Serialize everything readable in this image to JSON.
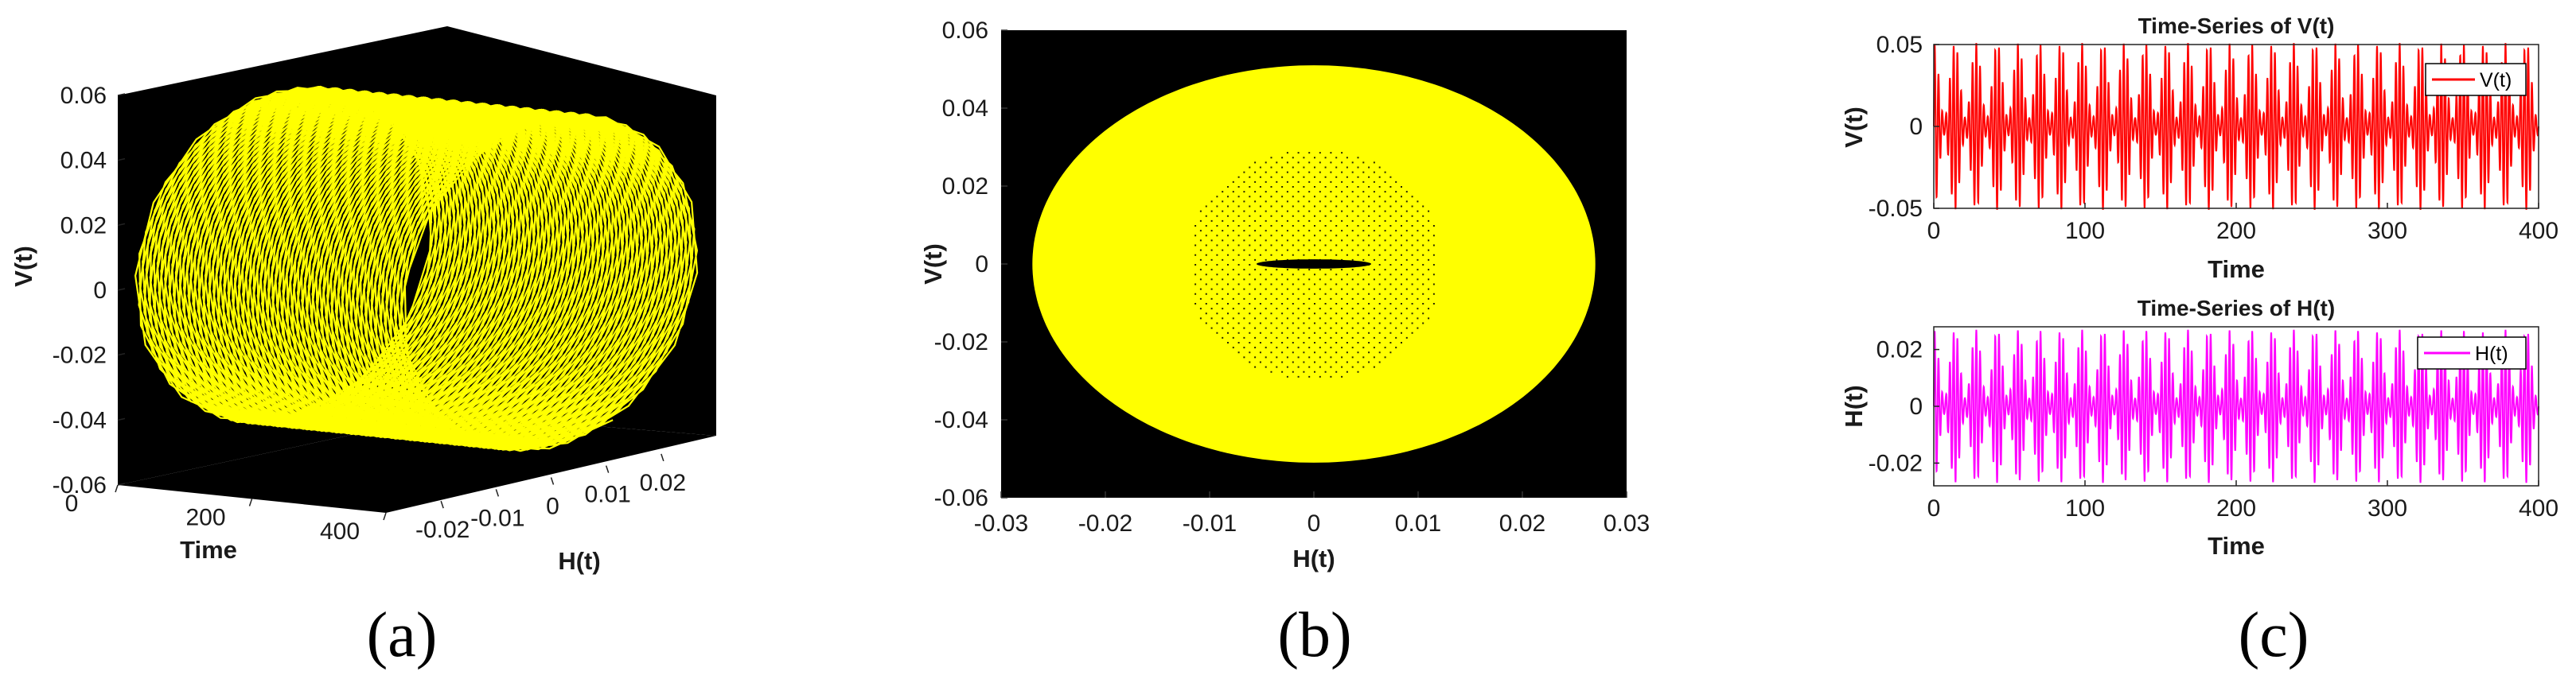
{
  "figure": {
    "caption_a": "(a)",
    "caption_b": "(b)",
    "caption_c": "(c)"
  },
  "colors": {
    "plot_background": "#000000",
    "yellow_trajectory": "#ffff00",
    "v_series": "#ff0000",
    "h_series": "#ff00ff"
  },
  "chart_data": [
    {
      "panel": "(a)",
      "type": "line",
      "projection": "3d",
      "title": "",
      "xlabel": "H(t)",
      "ylabel": "Time",
      "zlabel": "V(t)",
      "xlim": [
        -0.03,
        0.03
      ],
      "ylim": [
        0,
        400
      ],
      "zlim": [
        -0.06,
        0.06
      ],
      "xticks": [
        "-0.02",
        "-0.01",
        "0",
        "0.01",
        "0.02"
      ],
      "yticks": [
        "0",
        "200",
        "400"
      ],
      "zticks": [
        "0.06",
        "0.04",
        "0.02",
        "0",
        "-0.02",
        "-0.04",
        "-0.06"
      ],
      "series": [
        {
          "color": "#ffff00",
          "h_amplitude": 0.027,
          "v_amplitude": 0.051
        }
      ],
      "background": "#000000",
      "grid": false
    },
    {
      "panel": "(b)",
      "type": "line",
      "title": "",
      "xlabel": "H(t)",
      "ylabel": "V(t)",
      "xlim": [
        -0.03,
        0.03
      ],
      "ylim": [
        -0.06,
        0.06
      ],
      "xticks": [
        "-0.03",
        "-0.02",
        "-0.01",
        "0",
        "0.01",
        "0.02",
        "0.03"
      ],
      "yticks": [
        "0.06",
        "0.04",
        "0.02",
        "0",
        "-0.02",
        "-0.04",
        "-0.06"
      ],
      "series": [
        {
          "color": "#ffff00",
          "h_amplitude": 0.027,
          "v_amplitude": 0.051,
          "inner_hole_h": 0.0055,
          "inner_hole_v": 0.0012
        }
      ],
      "background": "#000000",
      "grid": false
    },
    {
      "panel": "(c) top",
      "type": "line",
      "title": "Time-Series of  V(t)",
      "xlabel": "Time",
      "ylabel": "V(t)",
      "xlim": [
        0,
        400
      ],
      "ylim": [
        -0.05,
        0.05
      ],
      "xticks": [
        "0",
        "100",
        "200",
        "300",
        "400"
      ],
      "yticks": [
        "0.05",
        "0",
        "-0.05"
      ],
      "series": [
        {
          "name": "V(t)",
          "color": "#ff0000",
          "amplitude": 0.051,
          "carrier_period": 2.5,
          "beat_period": 14
        }
      ],
      "legend": "top-right",
      "grid": false
    },
    {
      "panel": "(c) bottom",
      "type": "line",
      "title": "Time-Series of H(t)",
      "xlabel": "Time",
      "ylabel": "H(t)",
      "xlim": [
        0,
        400
      ],
      "ylim": [
        -0.028,
        0.028
      ],
      "xticks": [
        "0",
        "100",
        "200",
        "300",
        "400"
      ],
      "yticks": [
        "0.02",
        "0",
        "-0.02"
      ],
      "series": [
        {
          "name": "H(t)",
          "color": "#ff00ff",
          "amplitude": 0.027,
          "carrier_period": 2.5,
          "beat_period": 14
        }
      ],
      "legend": "top-right",
      "grid": false
    }
  ]
}
